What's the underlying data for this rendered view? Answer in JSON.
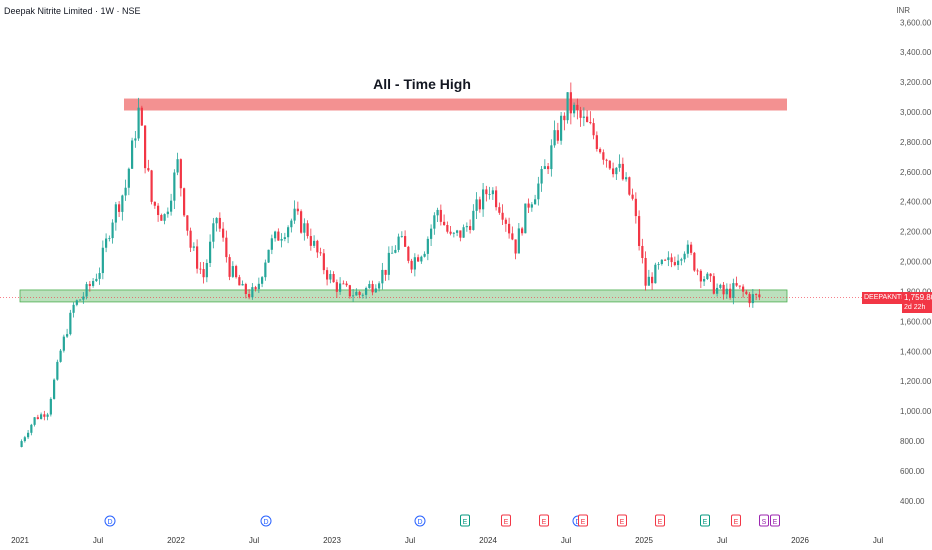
{
  "header": {
    "title": "Deepak Nitrite Limited · 1W · NSE",
    "currency": "INR"
  },
  "price_tag": {
    "symbol": "DEEPAKNTR",
    "price": "1,759.80",
    "countdown": "2d 22h"
  },
  "colors": {
    "up": "#26a69a",
    "down": "#f23645",
    "resistance_zone": "#f28b8b",
    "support_zone": "#a5d6a7",
    "current_price_line": "#f23645"
  },
  "events": [
    {
      "label": "D",
      "color": "#2962ff"
    },
    {
      "label": "D",
      "color": "#2962ff"
    },
    {
      "label": "D",
      "color": "#2962ff"
    },
    {
      "label": "E",
      "color": "#089981"
    },
    {
      "label": "E",
      "color": "#f23645"
    },
    {
      "label": "E",
      "color": "#f23645"
    },
    {
      "label": "D",
      "color": "#2962ff"
    },
    {
      "label": "E",
      "color": "#f23645"
    },
    {
      "label": "E",
      "color": "#f23645"
    },
    {
      "label": "E",
      "color": "#f23645"
    },
    {
      "label": "E",
      "color": "#089981"
    },
    {
      "label": "E",
      "color": "#f23645"
    },
    {
      "label": "S",
      "color": "#9c27b0"
    },
    {
      "label": "E",
      "color": "#9c27b0"
    }
  ],
  "chart_data": {
    "type": "candlestick",
    "title": "Deepak Nitrite Limited · 1W · NSE",
    "y_unit": "INR",
    "ylim": [
      300,
      3700
    ],
    "yticks": [
      "3,600.00",
      "3,400.00",
      "3,200.00",
      "3,000.00",
      "2,800.00",
      "2,600.00",
      "2,400.00",
      "2,200.00",
      "2,000.00",
      "1,800.00",
      "1,600.00",
      "1,400.00",
      "1,200.00",
      "1,000.00",
      "800.00",
      "600.00",
      "400.00"
    ],
    "xticks": [
      "2021",
      "Jul",
      "2022",
      "Jul",
      "2023",
      "Jul",
      "2024",
      "Jul",
      "2025",
      "Jul",
      "2026",
      "Jul"
    ],
    "xlim": [
      "2021-01-01",
      "2026-12-01"
    ],
    "annotations": [
      {
        "text": "All - Time High",
        "kind": "resistance zone",
        "y_range": [
          3010,
          3090
        ],
        "x_range": [
          "2021-09-15",
          "2025-12-01"
        ]
      },
      {
        "text": "",
        "kind": "support zone",
        "y_range": [
          1730,
          1810
        ],
        "x_range": [
          "2021-01-15",
          "2025-12-01"
        ]
      }
    ],
    "last_price": 1759.8,
    "series": [
      {
        "points": [
          {
            "x": "2021-01",
            "y": 800
          },
          {
            "x": "2021-02",
            "y": 950
          },
          {
            "x": "2021-03",
            "y": 1000
          },
          {
            "x": "2021-04",
            "y": 1400
          },
          {
            "x": "2021-05",
            "y": 1700
          },
          {
            "x": "2021-06",
            "y": 1800
          },
          {
            "x": "2021-07",
            "y": 1950
          },
          {
            "x": "2021-08",
            "y": 2300
          },
          {
            "x": "2021-09",
            "y": 2500
          },
          {
            "x": "2021-10",
            "y": 3000
          },
          {
            "x": "2021-11",
            "y": 2400
          },
          {
            "x": "2021-12",
            "y": 2300
          },
          {
            "x": "2022-01",
            "y": 2650
          },
          {
            "x": "2022-02",
            "y": 2100
          },
          {
            "x": "2022-03",
            "y": 1900
          },
          {
            "x": "2022-04",
            "y": 2300
          },
          {
            "x": "2022-05",
            "y": 1950
          },
          {
            "x": "2022-06",
            "y": 1800
          },
          {
            "x": "2022-07",
            "y": 1780
          },
          {
            "x": "2022-08",
            "y": 2100
          },
          {
            "x": "2022-09",
            "y": 2200
          },
          {
            "x": "2022-10",
            "y": 2300
          },
          {
            "x": "2022-11",
            "y": 2200
          },
          {
            "x": "2022-12",
            "y": 2000
          },
          {
            "x": "2023-01",
            "y": 1850
          },
          {
            "x": "2023-02",
            "y": 1800
          },
          {
            "x": "2023-03",
            "y": 1780
          },
          {
            "x": "2023-04",
            "y": 1850
          },
          {
            "x": "2023-05",
            "y": 1950
          },
          {
            "x": "2023-06",
            "y": 2150
          },
          {
            "x": "2023-07",
            "y": 2000
          },
          {
            "x": "2023-08",
            "y": 2100
          },
          {
            "x": "2023-09",
            "y": 2350
          },
          {
            "x": "2023-10",
            "y": 2150
          },
          {
            "x": "2023-11",
            "y": 2200
          },
          {
            "x": "2023-12",
            "y": 2350
          },
          {
            "x": "2024-01",
            "y": 2500
          },
          {
            "x": "2024-02",
            "y": 2350
          },
          {
            "x": "2024-03",
            "y": 2100
          },
          {
            "x": "2024-04",
            "y": 2400
          },
          {
            "x": "2024-05",
            "y": 2550
          },
          {
            "x": "2024-06",
            "y": 2800
          },
          {
            "x": "2024-07",
            "y": 3050
          },
          {
            "x": "2024-08",
            "y": 2950
          },
          {
            "x": "2024-09",
            "y": 2850
          },
          {
            "x": "2024-10",
            "y": 2700
          },
          {
            "x": "2024-11",
            "y": 2600
          },
          {
            "x": "2024-12",
            "y": 2400
          },
          {
            "x": "2025-01",
            "y": 1850
          },
          {
            "x": "2025-02",
            "y": 1950
          },
          {
            "x": "2025-03",
            "y": 2000
          },
          {
            "x": "2025-04",
            "y": 2100
          },
          {
            "x": "2025-05",
            "y": 1950
          },
          {
            "x": "2025-06",
            "y": 1850
          },
          {
            "x": "2025-07",
            "y": 1780
          },
          {
            "x": "2025-08",
            "y": 1820
          },
          {
            "x": "2025-09",
            "y": 1760
          }
        ]
      }
    ]
  }
}
